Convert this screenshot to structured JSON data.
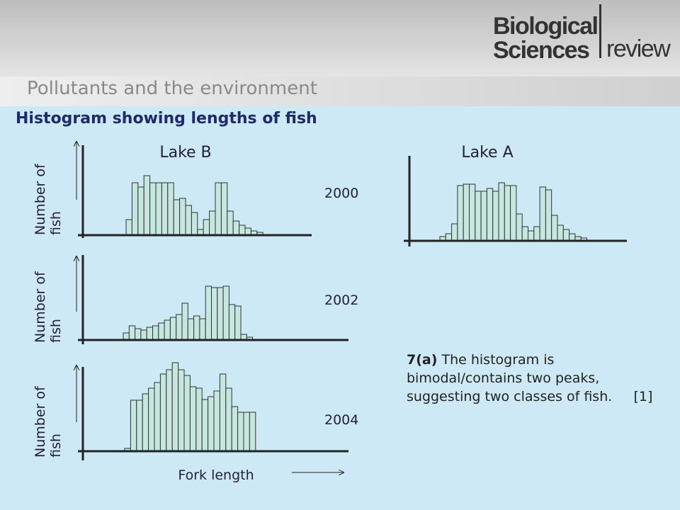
{
  "header": {
    "title": "Pollutants and the environment",
    "logo": {
      "line1": "Biological",
      "line2": "Sciences",
      "line3": "review"
    }
  },
  "heading": "Histogram showing lengths of fish",
  "chart_data": [
    {
      "type": "bar",
      "title": "Lake B",
      "label": "2000",
      "ylabel": "Number of fish",
      "color": "#c6e6e0",
      "ylim": [
        0,
        130
      ],
      "values": [
        22,
        74,
        68,
        84,
        74,
        74,
        74,
        74,
        50,
        52,
        42,
        32,
        8,
        22,
        34,
        74,
        74,
        34,
        20,
        14,
        10,
        6,
        4
      ]
    },
    {
      "type": "bar",
      "label": "2002",
      "ylabel": "Number of fish",
      "color": "#c6e6e0",
      "ylim": [
        0,
        130
      ],
      "values": [
        10,
        20,
        16,
        14,
        18,
        20,
        24,
        28,
        32,
        36,
        52,
        30,
        34,
        30,
        76,
        74,
        74,
        76,
        50,
        48,
        8,
        4
      ]
    },
    {
      "type": "bar",
      "label": "2004",
      "ylabel": "Number of fish",
      "xlabel": "Fork length",
      "color": "#c6e6e0",
      "ylim": [
        0,
        130
      ],
      "values": [
        4,
        72,
        72,
        81,
        89,
        97,
        109,
        115,
        125,
        115,
        107,
        91,
        89,
        73,
        77,
        85,
        109,
        89,
        63,
        55,
        55,
        55
      ]
    },
    {
      "type": "bar",
      "title": "Lake A",
      "color": "#c6e6e0",
      "ylim": [
        0,
        130
      ],
      "values": [
        6,
        10,
        24,
        78,
        80,
        80,
        70,
        70,
        74,
        70,
        82,
        78,
        78,
        38,
        20,
        14,
        20,
        76,
        72,
        36,
        22,
        16,
        10,
        6,
        4
      ]
    }
  ],
  "answer": {
    "label": "7(a)",
    "text": "The histogram is bimodal/contains two peaks, suggesting two classes of fish.     [1]"
  }
}
